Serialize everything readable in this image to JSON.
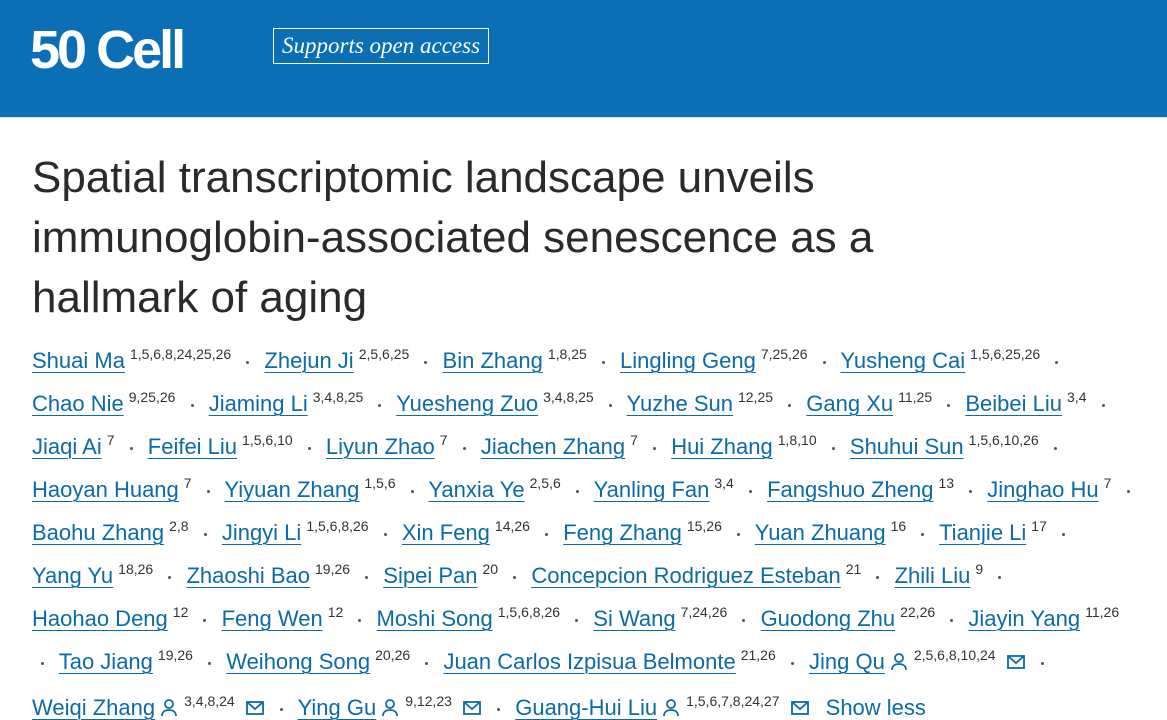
{
  "header": {
    "logo_number": "50",
    "logo": "Cell",
    "badge": "Supports open access"
  },
  "article": {
    "title": "Spatial transcriptomic landscape unveils immunoglobin-associated senescence as a hallmark of aging",
    "authors": [
      {
        "name": "Shuai Ma",
        "affiliations": "1,5,6,8,24,25,26"
      },
      {
        "name": "Zhejun Ji",
        "affiliations": "2,5,6,25"
      },
      {
        "name": "Bin Zhang",
        "affiliations": "1,8,25"
      },
      {
        "name": "Lingling Geng",
        "affiliations": "7,25,26"
      },
      {
        "name": "Yusheng Cai",
        "affiliations": "1,5,6,25,26"
      },
      {
        "name": "Chao Nie",
        "affiliations": "9,25,26"
      },
      {
        "name": "Jiaming Li",
        "affiliations": "3,4,8,25"
      },
      {
        "name": "Yuesheng Zuo",
        "affiliations": "3,4,8,25"
      },
      {
        "name": "Yuzhe Sun",
        "affiliations": "12,25"
      },
      {
        "name": "Gang Xu",
        "affiliations": "11,25"
      },
      {
        "name": "Beibei Liu",
        "affiliations": "3,4"
      },
      {
        "name": "Jiaqi Ai",
        "affiliations": "7"
      },
      {
        "name": "Feifei Liu",
        "affiliations": "1,5,6,10"
      },
      {
        "name": "Liyun Zhao",
        "affiliations": "7"
      },
      {
        "name": "Jiachen Zhang",
        "affiliations": "7"
      },
      {
        "name": "Hui Zhang",
        "affiliations": "1,8,10"
      },
      {
        "name": "Shuhui Sun",
        "affiliations": "1,5,6,10,26"
      },
      {
        "name": "Haoyan Huang",
        "affiliations": "7"
      },
      {
        "name": "Yiyuan Zhang",
        "affiliations": "1,5,6"
      },
      {
        "name": "Yanxia Ye",
        "affiliations": "2,5,6"
      },
      {
        "name": "Yanling Fan",
        "affiliations": "3,4"
      },
      {
        "name": "Fangshuo Zheng",
        "affiliations": "13"
      },
      {
        "name": "Jinghao Hu",
        "affiliations": "7"
      },
      {
        "name": "Baohu Zhang",
        "affiliations": "2,8"
      },
      {
        "name": "Jingyi Li",
        "affiliations": "1,5,6,8,26"
      },
      {
        "name": "Xin Feng",
        "affiliations": "14,26"
      },
      {
        "name": "Feng Zhang",
        "affiliations": "15,26"
      },
      {
        "name": "Yuan Zhuang",
        "affiliations": "16"
      },
      {
        "name": "Tianjie Li",
        "affiliations": "17"
      },
      {
        "name": "Yang Yu",
        "affiliations": "18,26"
      },
      {
        "name": "Zhaoshi Bao",
        "affiliations": "19,26"
      },
      {
        "name": "Sipei Pan",
        "affiliations": "20"
      },
      {
        "name": "Concepcion Rodriguez Esteban",
        "affiliations": "21"
      },
      {
        "name": "Zhili Liu",
        "affiliations": "9"
      },
      {
        "name": "Haohao Deng",
        "affiliations": "12"
      },
      {
        "name": "Feng Wen",
        "affiliations": "12"
      },
      {
        "name": "Moshi Song",
        "affiliations": "1,5,6,8,26"
      },
      {
        "name": "Si Wang",
        "affiliations": "7,24,26"
      },
      {
        "name": "Guodong Zhu",
        "affiliations": "22,26"
      },
      {
        "name": "Jiayin Yang",
        "affiliations": "11,26"
      },
      {
        "name": "Tao Jiang",
        "affiliations": "19,26"
      },
      {
        "name": "Weihong Song",
        "affiliations": "20,26"
      },
      {
        "name": "Juan Carlos Izpisua Belmonte",
        "affiliations": "21,26"
      },
      {
        "name": "Jing Qu",
        "affiliations": "2,5,6,8,10,24",
        "corresponding": true
      },
      {
        "name": "Weiqi Zhang",
        "affiliations": "3,4,8,24",
        "corresponding": true
      },
      {
        "name": "Ying Gu",
        "affiliations": "9,12,23",
        "corresponding": true
      },
      {
        "name": "Guang-Hui Liu",
        "affiliations": "1,5,6,7,8,24,27",
        "corresponding": true
      }
    ],
    "toggle": "Show less"
  }
}
